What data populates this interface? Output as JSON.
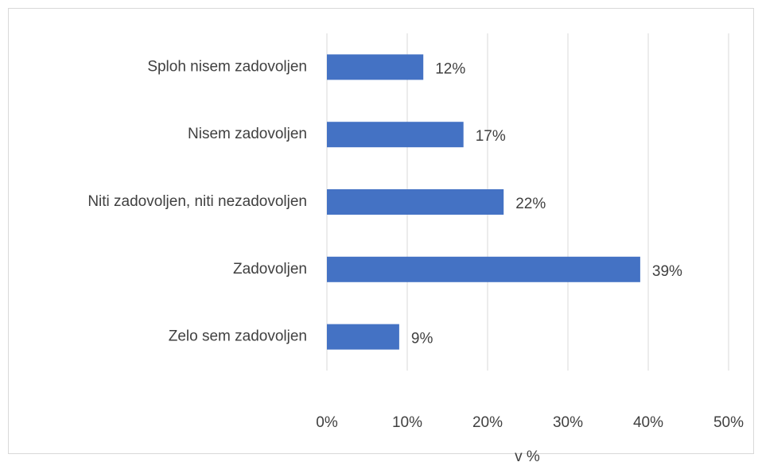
{
  "chart_data": {
    "type": "bar",
    "orientation": "horizontal",
    "categories": [
      "Sploh nisem zadovoljen",
      "Nisem zadovoljen",
      "Niti zadovoljen, niti nezadovoljen",
      "Zadovoljen",
      "Zelo sem zadovoljen"
    ],
    "values": [
      12,
      17,
      22,
      39,
      9
    ],
    "value_labels": [
      "12%",
      "17%",
      "22%",
      "39%",
      "9%"
    ],
    "color": "#4472c4",
    "xlabel": "v %",
    "xlim": [
      0,
      50
    ],
    "xticks": [
      {
        "value": 0,
        "label": "0%"
      },
      {
        "value": 10,
        "label": "10%"
      },
      {
        "value": 20,
        "label": "20%"
      },
      {
        "value": 30,
        "label": "30%"
      },
      {
        "value": 40,
        "label": "40%"
      },
      {
        "value": 50,
        "label": "50%"
      }
    ],
    "grid": true
  }
}
